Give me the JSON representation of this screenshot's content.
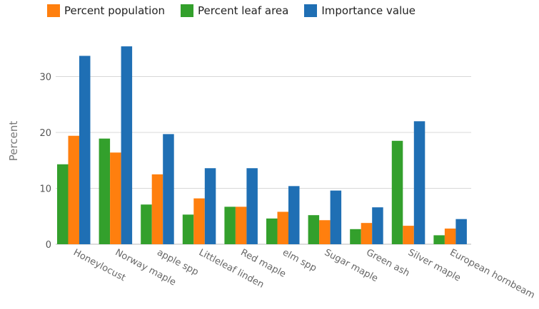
{
  "chart_data": {
    "type": "bar",
    "title": "",
    "xlabel": "",
    "ylabel": "Percent",
    "ylim": [
      0,
      40
    ],
    "yticks": [
      0,
      10,
      20,
      30
    ],
    "grid": true,
    "legend_position": "top",
    "categories": [
      "Honeylocust",
      "Norway maple",
      "apple spp",
      "Littleleaf linden",
      "Red maple",
      "elm spp",
      "Sugar maple",
      "Green ash",
      "Silver maple",
      "European hornbeam"
    ],
    "series": [
      {
        "name": "Percent leaf area",
        "color": "#33a02c",
        "values": [
          14.3,
          18.9,
          7.1,
          5.3,
          6.7,
          4.6,
          5.2,
          2.7,
          18.5,
          1.6
        ]
      },
      {
        "name": "Percent population",
        "color": "#ff7f0e",
        "values": [
          19.4,
          16.4,
          12.5,
          8.2,
          6.7,
          5.8,
          4.3,
          3.8,
          3.3,
          2.8
        ]
      },
      {
        "name": "Importance value",
        "color": "#1f6fb4",
        "values": [
          33.7,
          35.4,
          19.7,
          13.6,
          13.6,
          10.4,
          9.6,
          6.6,
          22.0,
          4.5
        ]
      }
    ],
    "legend_order": [
      "Percent population",
      "Percent leaf area",
      "Importance value"
    ]
  }
}
